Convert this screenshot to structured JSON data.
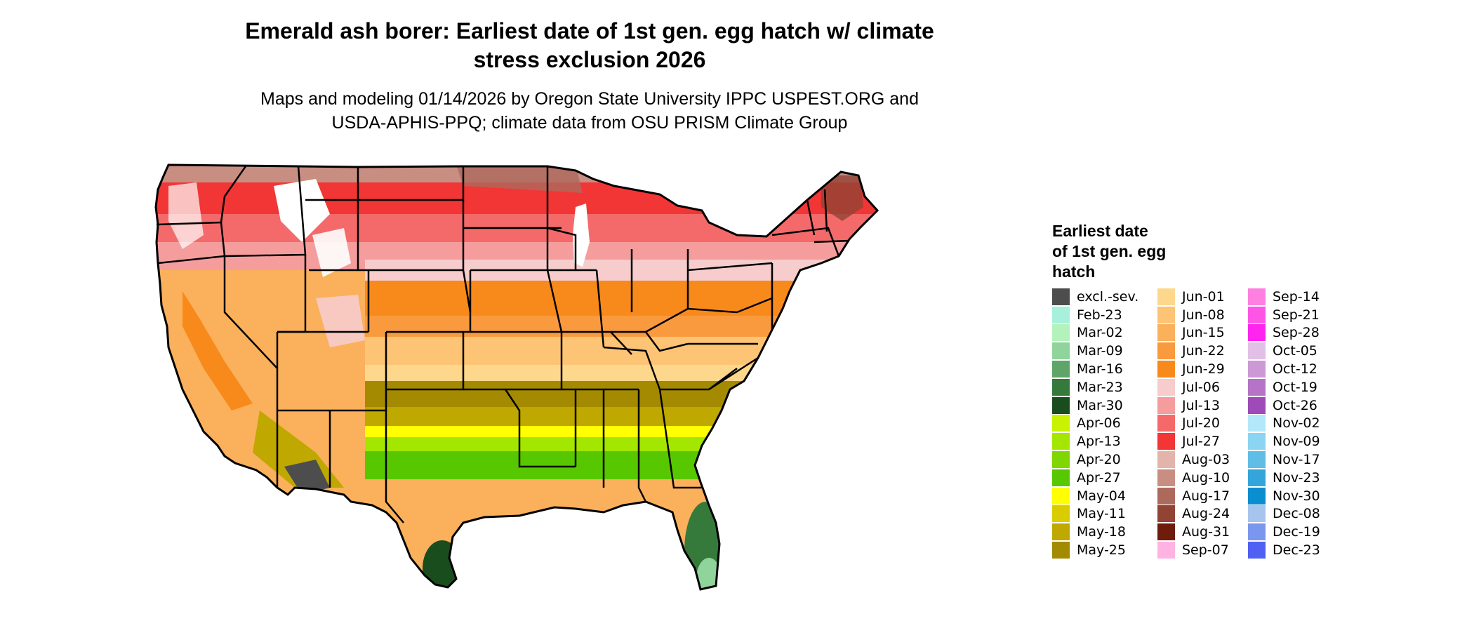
{
  "title": {
    "line1": "Emerald ash borer: Earliest date of 1st gen. egg hatch w/ climate",
    "line2": "stress exclusion 2026"
  },
  "subtitle": {
    "line1": "Maps and modeling 01/14/2026 by Oregon State University IPPC USPEST.ORG and",
    "line2": "USDA-APHIS-PPQ; climate data from OSU PRISM Climate Group"
  },
  "legend": {
    "title_lines": [
      "Earliest date",
      "of 1st gen. egg",
      "hatch"
    ],
    "columns": [
      [
        {
          "label": "excl.-sev.",
          "color": "#4d4d4d"
        },
        {
          "label": "Feb-23",
          "color": "#a6f0dc"
        },
        {
          "label": "Mar-02",
          "color": "#b4f2bc"
        },
        {
          "label": "Mar-09",
          "color": "#8fd49a"
        },
        {
          "label": "Mar-16",
          "color": "#5fa567"
        },
        {
          "label": "Mar-23",
          "color": "#357a3b"
        },
        {
          "label": "Mar-30",
          "color": "#1a4d1e"
        },
        {
          "label": "Apr-06",
          "color": "#c7f200"
        },
        {
          "label": "Apr-13",
          "color": "#a3e600"
        },
        {
          "label": "Apr-20",
          "color": "#7fd600"
        },
        {
          "label": "Apr-27",
          "color": "#57c800"
        },
        {
          "label": "May-04",
          "color": "#ffff00"
        },
        {
          "label": "May-11",
          "color": "#d9cc00"
        },
        {
          "label": "May-18",
          "color": "#bfa800"
        },
        {
          "label": "May-25",
          "color": "#a38a00"
        }
      ],
      [
        {
          "label": "Jun-01",
          "color": "#fdd88c"
        },
        {
          "label": "Jun-08",
          "color": "#fcc474"
        },
        {
          "label": "Jun-15",
          "color": "#fbb05c"
        },
        {
          "label": "Jun-22",
          "color": "#fa9a3e"
        },
        {
          "label": "Jun-29",
          "color": "#f88a1c"
        },
        {
          "label": "Jul-06",
          "color": "#f6cccc"
        },
        {
          "label": "Jul-13",
          "color": "#f59d9d"
        },
        {
          "label": "Jul-20",
          "color": "#f46a6a"
        },
        {
          "label": "Jul-27",
          "color": "#f23535"
        },
        {
          "label": "Aug-03",
          "color": "#e3b5aa"
        },
        {
          "label": "Aug-10",
          "color": "#c98e82"
        },
        {
          "label": "Aug-17",
          "color": "#ad6a5c"
        },
        {
          "label": "Aug-24",
          "color": "#914434"
        },
        {
          "label": "Aug-31",
          "color": "#6e1c0c"
        },
        {
          "label": "Sep-07",
          "color": "#ffb3e3"
        }
      ],
      [
        {
          "label": "Sep-14",
          "color": "#ff80e0"
        },
        {
          "label": "Sep-21",
          "color": "#ff55e6"
        },
        {
          "label": "Sep-28",
          "color": "#ff24ef"
        },
        {
          "label": "Oct-05",
          "color": "#e2bfe6"
        },
        {
          "label": "Oct-12",
          "color": "#cc99d6"
        },
        {
          "label": "Oct-19",
          "color": "#b674c8"
        },
        {
          "label": "Oct-26",
          "color": "#9e4ab8"
        },
        {
          "label": "Nov-02",
          "color": "#b3e8fa"
        },
        {
          "label": "Nov-09",
          "color": "#8bd4f2"
        },
        {
          "label": "Nov-17",
          "color": "#5fbde6"
        },
        {
          "label": "Nov-23",
          "color": "#33a5da"
        },
        {
          "label": "Nov-30",
          "color": "#0a8ecf"
        },
        {
          "label": "Dec-08",
          "color": "#a6c4ee"
        },
        {
          "label": "Dec-19",
          "color": "#7a96ee"
        },
        {
          "label": "Dec-23",
          "color": "#4f60f2"
        }
      ]
    ]
  },
  "map": {
    "region": "contiguous United States",
    "state_borders": true,
    "colors": {
      "northern_band": "#f46a6a",
      "central_band": "#f88a1c",
      "southern_band": "#bfa800",
      "gulf_coast": "#57c800",
      "excluded": "#4d4d4d",
      "mountain_white": "#ffffff"
    }
  }
}
